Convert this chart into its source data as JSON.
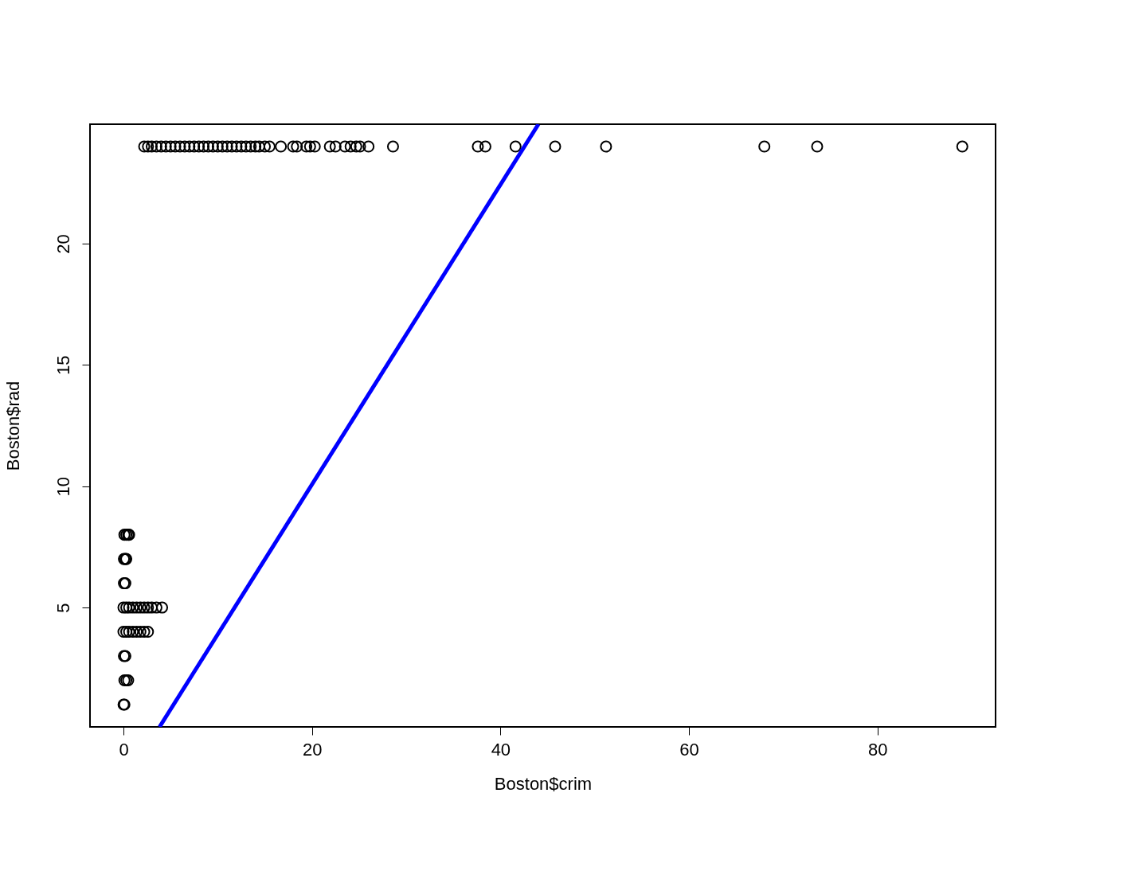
{
  "chart_data": {
    "type": "scatter",
    "xlabel": "Boston$crim",
    "ylabel": "Boston$rad",
    "xlim": [
      -3.55,
      92.53
    ],
    "ylim": [
      0.08,
      24.92
    ],
    "xticks": [
      0,
      20,
      40,
      60,
      80
    ],
    "yticks": [
      5,
      10,
      15,
      20
    ],
    "grid": false,
    "legend": false,
    "series": [
      {
        "color": "#000000",
        "marker": "circle",
        "x": [
          2.2,
          2.6,
          3.0,
          3.5,
          4.0,
          4.5,
          5.0,
          5.5,
          6.0,
          6.5,
          7.0,
          7.5,
          8.0,
          8.5,
          9.0,
          9.5,
          10.0,
          10.5,
          11.0,
          11.5,
          12.0,
          12.5,
          13.0,
          13.5,
          14.0,
          14.4,
          15.0,
          15.5,
          16.7,
          18.0,
          18.4,
          19.4,
          19.8,
          20.3,
          21.9,
          22.5,
          23.5,
          24.1,
          24.7,
          25.1,
          26.0,
          28.6,
          37.6,
          38.4,
          41.6,
          45.8,
          51.2,
          68.0,
          73.6,
          89.0,
          0.1,
          0.3,
          0.5,
          0.6,
          0.05,
          0.2,
          0.3,
          0.05,
          0.2,
          0.0,
          0.3,
          0.6,
          1.0,
          1.4,
          1.8,
          2.2,
          2.6,
          3.0,
          3.5,
          4.1,
          0.0,
          0.3,
          0.6,
          1.0,
          1.4,
          1.8,
          2.2,
          2.6,
          0.05,
          0.2,
          0.1,
          0.3,
          0.5,
          0.01,
          0.1
        ],
        "values": [
          24,
          24,
          24,
          24,
          24,
          24,
          24,
          24,
          24,
          24,
          24,
          24,
          24,
          24,
          24,
          24,
          24,
          24,
          24,
          24,
          24,
          24,
          24,
          24,
          24,
          24,
          24,
          24,
          24,
          24,
          24,
          24,
          24,
          24,
          24,
          24,
          24,
          24,
          24,
          24,
          24,
          24,
          24,
          24,
          24,
          24,
          24,
          24,
          24,
          24,
          8,
          8,
          8,
          8,
          7,
          7,
          7,
          6,
          6,
          5,
          5,
          5,
          5,
          5,
          5,
          5,
          5,
          5,
          5,
          5,
          4,
          4,
          4,
          4,
          4,
          4,
          4,
          4,
          3,
          3,
          2,
          2,
          2,
          1,
          1
        ]
      },
      {
        "type": "line",
        "color": "#0000ff",
        "marker": "none",
        "line_style": "solid",
        "x": [
          3.83,
          44.03
        ],
        "values": [
          0.08,
          24.92
        ]
      }
    ]
  }
}
